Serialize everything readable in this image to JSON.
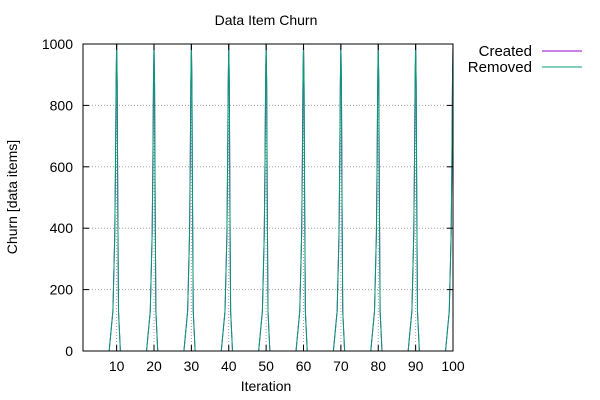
{
  "chart_data": {
    "type": "line",
    "title": "Data Item Churn",
    "xlabel": "Iteration",
    "ylabel": "Churn [data items]",
    "xlim": [
      1,
      100
    ],
    "ylim": [
      0,
      1000
    ],
    "xticks": [
      10,
      20,
      30,
      40,
      50,
      60,
      70,
      80,
      90,
      100
    ],
    "yticks": [
      0,
      200,
      400,
      600,
      800,
      1000
    ],
    "grid": true,
    "legend_position": "top-right, outside plot",
    "spike_iterations": [
      10,
      20,
      30,
      40,
      50,
      60,
      70,
      80,
      90,
      100
    ],
    "spike_profile": [
      {
        "offset": -2,
        "value": 0
      },
      {
        "offset": -1,
        "value": 130
      },
      {
        "offset": -0.5,
        "value": 380
      },
      {
        "offset": -0.3,
        "value": 620
      },
      {
        "offset": -0.15,
        "value": 870
      },
      {
        "offset": 0,
        "value": 1000
      },
      {
        "offset": 0.15,
        "value": 870
      },
      {
        "offset": 0.3,
        "value": 500
      },
      {
        "offset": 0.5,
        "value": 130
      },
      {
        "offset": 1,
        "value": 0
      }
    ],
    "series": [
      {
        "name": "Created",
        "color": "#9400d3"
      },
      {
        "name": "Removed",
        "color": "#009e73"
      }
    ]
  }
}
